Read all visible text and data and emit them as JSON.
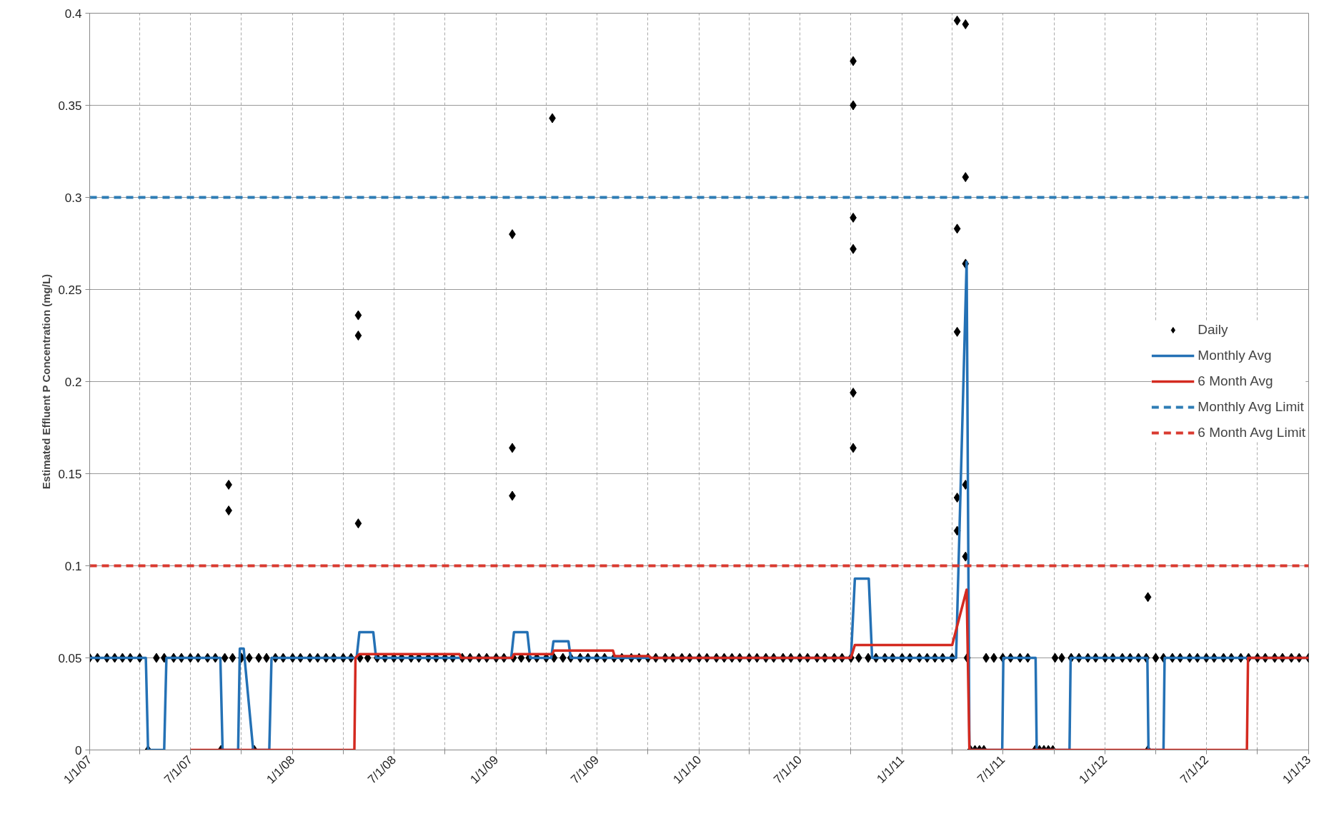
{
  "chart_data": {
    "type": "line",
    "ylabel": "Estimated Effluent P Concentration (mg/L)",
    "xlim": [
      "2007-01-01",
      "2013-01-01"
    ],
    "xticks": [
      {
        "value": "2007-01-01",
        "label": "1/1/07"
      },
      {
        "value": "2007-04-01",
        "label": null
      },
      {
        "value": "2007-07-01",
        "label": "7/1/07"
      },
      {
        "value": "2007-10-01",
        "label": null
      },
      {
        "value": "2008-01-01",
        "label": "1/1/08"
      },
      {
        "value": "2008-04-01",
        "label": null
      },
      {
        "value": "2008-07-01",
        "label": "7/1/08"
      },
      {
        "value": "2008-10-01",
        "label": null
      },
      {
        "value": "2009-01-01",
        "label": "1/1/09"
      },
      {
        "value": "2009-04-01",
        "label": null
      },
      {
        "value": "2009-07-01",
        "label": "7/1/09"
      },
      {
        "value": "2009-10-01",
        "label": null
      },
      {
        "value": "2010-01-01",
        "label": "1/1/10"
      },
      {
        "value": "2010-04-01",
        "label": null
      },
      {
        "value": "2010-07-01",
        "label": "7/1/10"
      },
      {
        "value": "2010-10-01",
        "label": null
      },
      {
        "value": "2011-01-01",
        "label": "1/1/11"
      },
      {
        "value": "2011-04-01",
        "label": null
      },
      {
        "value": "2011-07-01",
        "label": "7/1/11"
      },
      {
        "value": "2011-10-01",
        "label": null
      },
      {
        "value": "2012-01-01",
        "label": "1/1/12"
      },
      {
        "value": "2012-04-01",
        "label": null
      },
      {
        "value": "2012-07-01",
        "label": "7/1/12"
      },
      {
        "value": "2012-10-01",
        "label": null
      },
      {
        "value": "2013-01-01",
        "label": "1/1/13"
      }
    ],
    "ylim": [
      0,
      0.4
    ],
    "yticks": [
      0,
      0.05,
      0.1,
      0.15,
      0.2,
      0.25,
      0.3,
      0.35,
      0.4
    ],
    "grid": true,
    "legend": "right",
    "line_style": "solid",
    "series": [
      {
        "name": "Daily",
        "type": "scatter",
        "marker": "diamond",
        "color": "#000000",
        "x": [
          "2007-01-01",
          "2007-01-15",
          "2007-02-01",
          "2007-02-15",
          "2007-03-01",
          "2007-03-15",
          "2007-04-01",
          "2007-04-16",
          "2007-05-01",
          "2007-05-15",
          "2007-06-01",
          "2007-06-15",
          "2007-07-01",
          "2007-07-15",
          "2007-08-01",
          "2007-08-15",
          "2007-08-25",
          "2007-09-01",
          "2007-09-08",
          "2007-09-08",
          "2007-09-15",
          "2007-10-01",
          "2007-10-15",
          "2007-10-24",
          "2007-11-01",
          "2007-11-15",
          "2007-12-01",
          "2007-12-15",
          "2008-01-01",
          "2008-01-15",
          "2008-02-01",
          "2008-02-15",
          "2008-03-01",
          "2008-03-15",
          "2008-04-01",
          "2008-04-15",
          "2008-04-28",
          "2008-04-28",
          "2008-04-28",
          "2008-05-01",
          "2008-05-15",
          "2008-06-01",
          "2008-06-15",
          "2008-07-01",
          "2008-07-15",
          "2008-08-01",
          "2008-08-15",
          "2008-09-01",
          "2008-09-15",
          "2008-10-01",
          "2008-10-15",
          "2008-11-01",
          "2008-11-15",
          "2008-12-01",
          "2008-12-15",
          "2009-01-01",
          "2009-01-15",
          "2009-01-30",
          "2009-01-30",
          "2009-01-30",
          "2009-02-01",
          "2009-02-15",
          "2009-03-01",
          "2009-03-15",
          "2009-04-01",
          "2009-04-12",
          "2009-04-15",
          "2009-05-01",
          "2009-05-15",
          "2009-06-01",
          "2009-06-15",
          "2009-07-01",
          "2009-07-15",
          "2009-08-01",
          "2009-08-15",
          "2009-09-01",
          "2009-09-15",
          "2009-10-01",
          "2009-10-15",
          "2009-11-01",
          "2009-11-15",
          "2009-12-01",
          "2009-12-15",
          "2010-01-01",
          "2010-01-15",
          "2010-02-01",
          "2010-02-15",
          "2010-03-01",
          "2010-03-15",
          "2010-04-01",
          "2010-04-15",
          "2010-05-01",
          "2010-05-15",
          "2010-06-01",
          "2010-06-15",
          "2010-07-01",
          "2010-07-15",
          "2010-08-01",
          "2010-08-15",
          "2010-09-01",
          "2010-09-15",
          "2010-10-01",
          "2010-10-05",
          "2010-10-05",
          "2010-10-05",
          "2010-10-05",
          "2010-10-05",
          "2010-10-05",
          "2010-10-15",
          "2010-11-01",
          "2010-11-15",
          "2010-12-01",
          "2010-12-15",
          "2011-01-01",
          "2011-01-15",
          "2011-02-01",
          "2011-02-15",
          "2011-03-01",
          "2011-03-15",
          "2011-04-01",
          "2011-04-10",
          "2011-04-10",
          "2011-04-10",
          "2011-04-10",
          "2011-04-10",
          "2011-04-25",
          "2011-04-25",
          "2011-04-25",
          "2011-04-25",
          "2011-04-25",
          "2011-04-28",
          "2011-05-04",
          "2011-05-12",
          "2011-05-20",
          "2011-05-28",
          "2011-06-01",
          "2011-06-15",
          "2011-07-01",
          "2011-07-15",
          "2011-08-01",
          "2011-08-15",
          "2011-08-28",
          "2011-09-05",
          "2011-09-13",
          "2011-09-21",
          "2011-09-29",
          "2011-10-03",
          "2011-10-15",
          "2011-11-01",
          "2011-11-15",
          "2011-12-01",
          "2011-12-15",
          "2012-01-01",
          "2012-01-15",
          "2012-02-01",
          "2012-02-15",
          "2012-03-01",
          "2012-03-15",
          "2012-03-18",
          "2012-03-18",
          "2012-04-01",
          "2012-04-15",
          "2012-05-01",
          "2012-05-15",
          "2012-06-01",
          "2012-06-15",
          "2012-07-01",
          "2012-07-15",
          "2012-08-01",
          "2012-08-15",
          "2012-09-01",
          "2012-09-15",
          "2012-10-01",
          "2012-10-15",
          "2012-11-01",
          "2012-11-15",
          "2012-12-01",
          "2012-12-15",
          "2013-01-01"
        ],
        "values": [
          0.05,
          0.05,
          0.05,
          0.05,
          0.05,
          0.05,
          0.05,
          0,
          0.05,
          0.05,
          0.05,
          0.05,
          0.05,
          0.05,
          0.05,
          0.05,
          0,
          0.05,
          0.144,
          0.13,
          0.05,
          0.05,
          0.05,
          0,
          0.05,
          0.05,
          0.05,
          0.05,
          0.05,
          0.05,
          0.05,
          0.05,
          0.05,
          0.05,
          0.05,
          0.05,
          0.236,
          0.225,
          0.123,
          0.05,
          0.05,
          0.05,
          0.05,
          0.05,
          0.05,
          0.05,
          0.05,
          0.05,
          0.05,
          0.05,
          0.05,
          0.05,
          0.05,
          0.05,
          0.05,
          0.05,
          0.05,
          0.28,
          0.164,
          0.138,
          0.05,
          0.05,
          0.05,
          0.05,
          0.05,
          0.343,
          0.05,
          0.05,
          0.05,
          0.05,
          0.05,
          0.05,
          0.05,
          0.05,
          0.05,
          0.05,
          0.05,
          0.05,
          0.05,
          0.05,
          0.05,
          0.05,
          0.05,
          0.05,
          0.05,
          0.05,
          0.05,
          0.05,
          0.05,
          0.05,
          0.05,
          0.05,
          0.05,
          0.05,
          0.05,
          0.05,
          0.05,
          0.05,
          0.05,
          0.05,
          0.05,
          0.05,
          0.374,
          0.35,
          0.289,
          0.272,
          0.194,
          0.164,
          0.05,
          0.05,
          0.05,
          0.05,
          0.05,
          0.05,
          0.05,
          0.05,
          0.05,
          0.05,
          0.05,
          0.05,
          0.396,
          0.283,
          0.227,
          0.137,
          0.119,
          0.394,
          0.311,
          0.264,
          0.144,
          0.105,
          0.05,
          0,
          0,
          0,
          0,
          0.05,
          0.05,
          0.05,
          0.05,
          0.05,
          0.05,
          0,
          0,
          0,
          0,
          0,
          0.05,
          0.05,
          0.05,
          0.05,
          0.05,
          0.05,
          0.05,
          0.05,
          0.05,
          0.05,
          0.05,
          0.05,
          0.083,
          0,
          0.05,
          0.05,
          0.05,
          0.05,
          0.05,
          0.05,
          0.05,
          0.05,
          0.05,
          0.05,
          0.05,
          0.05,
          0.05,
          0.05,
          0.05,
          0.05,
          0.05,
          0.05,
          0.05
        ]
      },
      {
        "name": "Monthly Avg",
        "color": "#2471b5",
        "x": [
          "2007-01-01",
          "2007-04-12",
          "2007-04-16",
          "2007-05-15",
          "2007-05-19",
          "2007-08-24",
          "2007-08-28",
          "2007-09-25",
          "2007-09-28",
          "2007-10-05",
          "2007-10-22",
          "2007-11-20",
          "2007-11-24",
          "2008-04-25",
          "2008-04-30",
          "2008-05-25",
          "2008-05-30",
          "2009-01-28",
          "2009-02-02",
          "2009-02-26",
          "2009-03-03",
          "2009-04-10",
          "2009-04-14",
          "2009-05-11",
          "2009-05-15",
          "2010-10-01",
          "2010-10-08",
          "2010-11-02",
          "2010-11-08",
          "2011-04-08",
          "2011-04-27",
          "2011-05-02",
          "2011-06-30",
          "2011-07-02",
          "2011-08-29",
          "2011-08-31",
          "2011-10-29",
          "2011-10-31",
          "2012-03-17",
          "2012-03-19",
          "2012-04-15",
          "2012-04-17",
          "2013-01-01"
        ],
        "values": [
          0.05,
          0.05,
          0,
          0,
          0.05,
          0.05,
          0,
          0,
          0.055,
          0.055,
          0,
          0,
          0.05,
          0.05,
          0.064,
          0.064,
          0.05,
          0.05,
          0.064,
          0.064,
          0.05,
          0.05,
          0.059,
          0.059,
          0.05,
          0.05,
          0.093,
          0.093,
          0.05,
          0.05,
          0.265,
          0,
          0,
          0.05,
          0.05,
          0,
          0,
          0.05,
          0.05,
          0,
          0,
          0.05,
          0.05
        ]
      },
      {
        "name": "6 Month Avg",
        "color": "#d42a20",
        "x": [
          "2007-07-01",
          "2008-04-21",
          "2008-04-23",
          "2008-04-30",
          "2008-10-27",
          "2008-10-30",
          "2009-01-30",
          "2009-02-02",
          "2009-04-12",
          "2009-04-15",
          "2009-07-30",
          "2009-08-02",
          "2009-10-03",
          "2009-10-06",
          "2010-10-01",
          "2010-10-08",
          "2011-04-01",
          "2011-04-27",
          "2011-05-02",
          "2012-09-12",
          "2012-09-14",
          "2013-01-01"
        ],
        "values": [
          0,
          0,
          0.05,
          0.052,
          0.052,
          0.05,
          0.05,
          0.052,
          0.052,
          0.054,
          0.054,
          0.051,
          0.051,
          0.05,
          0.05,
          0.057,
          0.057,
          0.087,
          0,
          0,
          0.05,
          0.05
        ]
      }
    ],
    "ref_lines": [
      {
        "axis": "y",
        "value": 0.3,
        "label": "Monthly Avg Limit",
        "color": "#2e7db5",
        "line_style": "dashed"
      },
      {
        "axis": "y",
        "value": 0.1,
        "label": "6 Month Avg Limit",
        "color": "#d93a30",
        "line_style": "dashed"
      }
    ]
  }
}
